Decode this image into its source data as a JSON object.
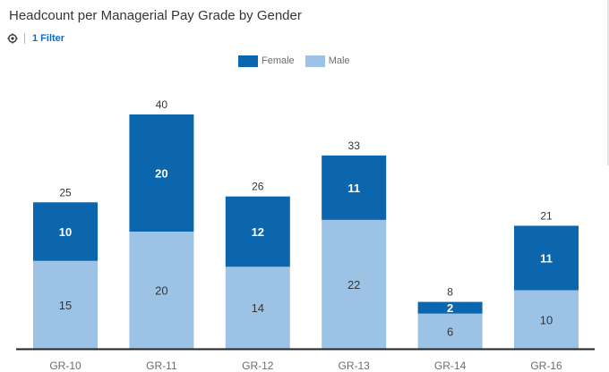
{
  "title": "Headcount per Managerial Pay Grade by Gender",
  "filter": {
    "icon": "filter-settings-icon",
    "label": "1 Filter"
  },
  "colors": {
    "female": "#0c66ad",
    "male": "#9cc3e6",
    "axis": "#222222"
  },
  "chart_data": {
    "type": "bar",
    "stacked": true,
    "title": "Headcount per Managerial Pay Grade by Gender",
    "categories": [
      "GR-10",
      "GR-11",
      "GR-12",
      "GR-13",
      "GR-14",
      "GR-16"
    ],
    "series": [
      {
        "name": "Male",
        "values": [
          15,
          20,
          14,
          22,
          6,
          10
        ]
      },
      {
        "name": "Female",
        "values": [
          10,
          20,
          12,
          11,
          2,
          11
        ]
      }
    ],
    "totals": [
      25,
      40,
      26,
      33,
      8,
      21
    ],
    "legend": {
      "position": "top-center",
      "entries": [
        "Female",
        "Male"
      ]
    },
    "grid": false,
    "ylim": [
      0,
      40
    ]
  }
}
